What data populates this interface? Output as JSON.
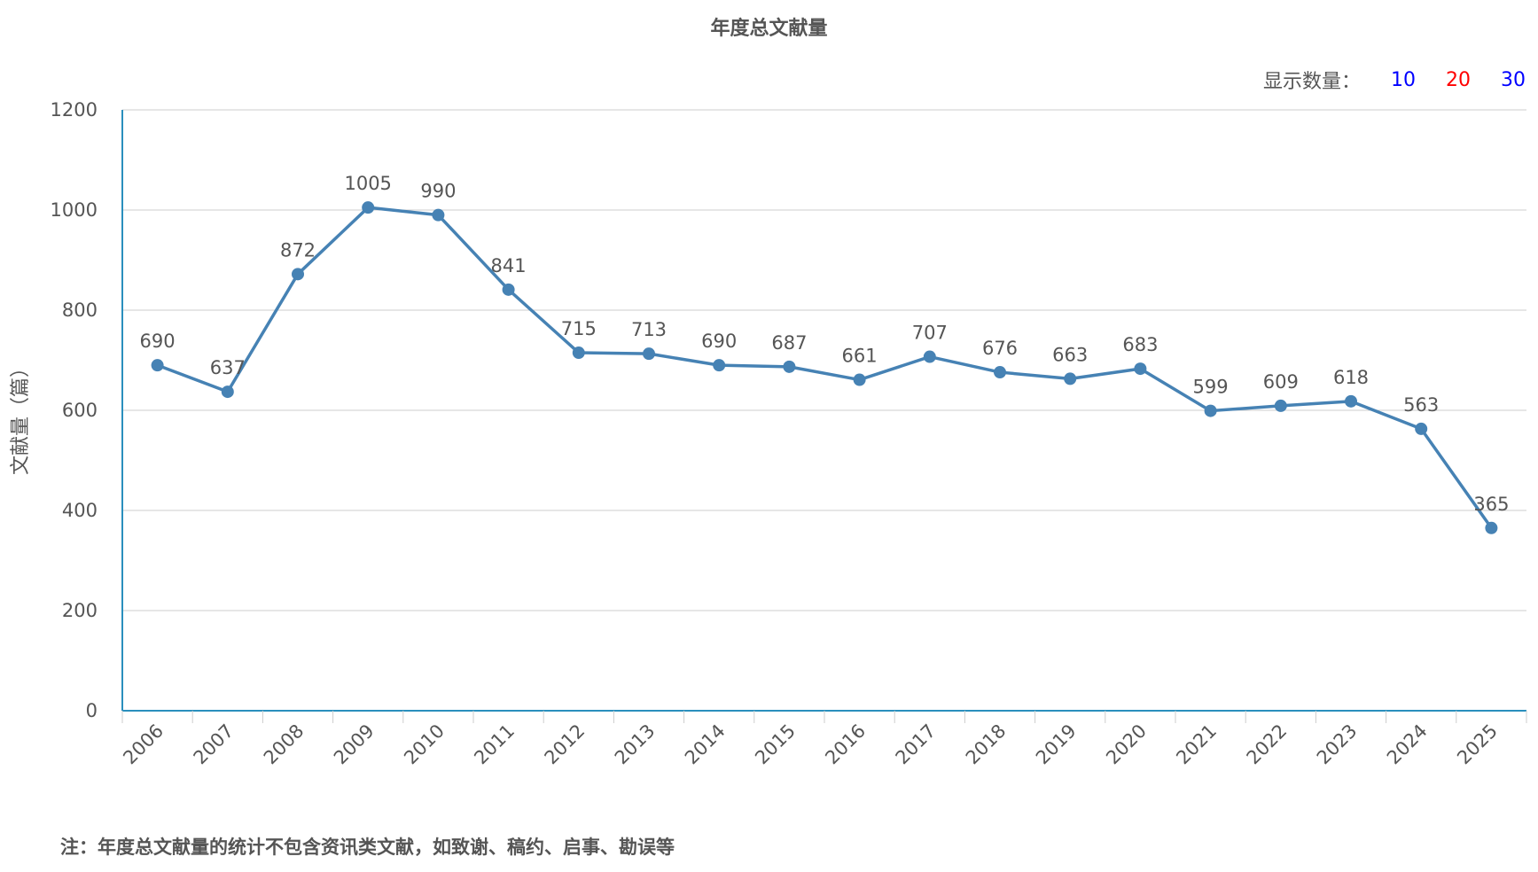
{
  "chart_data": {
    "type": "line",
    "title": "年度总文献量",
    "ylabel": "文献量（篇）",
    "xlabel": "",
    "categories": [
      "2006",
      "2007",
      "2008",
      "2009",
      "2010",
      "2011",
      "2012",
      "2013",
      "2014",
      "2015",
      "2016",
      "2017",
      "2018",
      "2019",
      "2020",
      "2021",
      "2022",
      "2023",
      "2024",
      "2025"
    ],
    "series": [
      {
        "values": [
          690,
          637,
          872,
          1005,
          990,
          841,
          715,
          713,
          690,
          687,
          661,
          707,
          676,
          663,
          683,
          599,
          609,
          618,
          563,
          365
        ]
      }
    ],
    "ylim": [
      0,
      1200
    ],
    "yticks": [
      0,
      200,
      400,
      600,
      800,
      1000,
      1200
    ],
    "grid": true,
    "legend": "none",
    "line_color": "#4682b4",
    "axis_color": "#2a8fbd",
    "grid_color": "#cccccc"
  },
  "display_count": {
    "label": "显示数量：",
    "options": [
      {
        "label": "10",
        "color": "#0000ff"
      },
      {
        "label": "20",
        "color": "#ff0000"
      },
      {
        "label": "30",
        "color": "#0000ff"
      }
    ]
  },
  "footnote": "注：年度总文献量的统计不包含资讯类文献，如致谢、稿约、启事、勘误等"
}
